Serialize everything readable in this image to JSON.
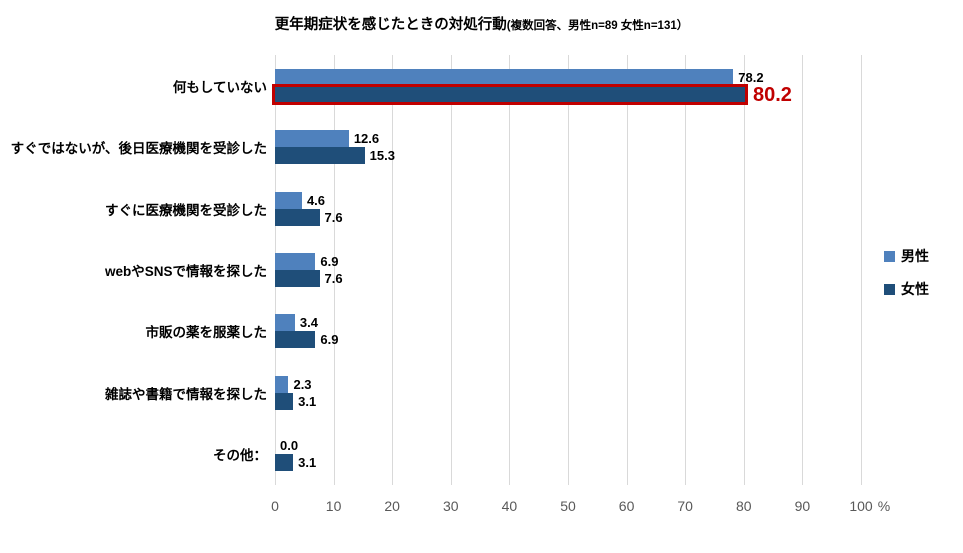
{
  "chart_data": {
    "type": "bar",
    "orientation": "horizontal",
    "title": "更年期症状を感じたときの対処行動",
    "subtitle": "(複数回答、男性n=89 女性n=131）",
    "categories": [
      "何もしていない",
      "すぐではないが、後日医療機関を受診した",
      "すぐに医療機関を受診した",
      "webやSNSで情報を探した",
      "市販の薬を服薬した",
      "雑誌や書籍で情報を探した",
      "その他："
    ],
    "series": [
      {
        "key": "male",
        "name": "男性",
        "color": "#4F81BD",
        "values": [
          78.2,
          12.6,
          4.6,
          6.9,
          3.4,
          2.3,
          0.0
        ]
      },
      {
        "key": "female",
        "name": "女性",
        "color": "#1F4E79",
        "values": [
          80.2,
          15.3,
          7.6,
          7.6,
          6.9,
          3.1,
          3.1
        ]
      }
    ],
    "highlight": {
      "category_index": 0,
      "series_index": 1,
      "box_color": "#C00000",
      "label_color": "#C00000"
    },
    "x_ticks": [
      0,
      10,
      20,
      30,
      40,
      50,
      60,
      70,
      80,
      90,
      100
    ],
    "x_unit": "%",
    "xlim": [
      0,
      100
    ],
    "grid": "vertical",
    "legend_position": "right",
    "colors": {
      "grid": "#D9D9D9",
      "axis_text": "#595959",
      "value_label": "#000000"
    }
  }
}
